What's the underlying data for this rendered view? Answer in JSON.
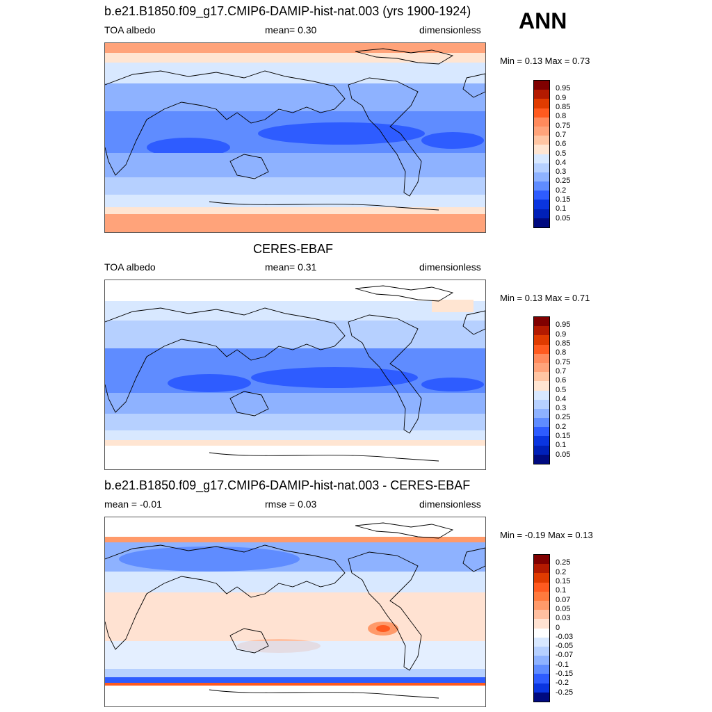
{
  "season": "ANN",
  "panels": [
    {
      "title": "b.e21.B1850.f09_g17.CMIP6-DAMIP-hist-nat.003 (yrs 1900-1924)",
      "left": "TOA albedo",
      "center": "mean=   0.30",
      "right": "dimensionless",
      "minmax": "Min =   0.13 Max =   0.73",
      "colorbar": {
        "labels": [
          "0.95",
          "0.9",
          "0.85",
          "0.8",
          "0.75",
          "0.7",
          "0.6",
          "0.5",
          "0.4",
          "0.3",
          "0.25",
          "0.2",
          "0.15",
          "0.1",
          "0.05"
        ],
        "colors": [
          "#800000",
          "#b31a00",
          "#e03b00",
          "#ff5a1f",
          "#ff8a5c",
          "#ffa37a",
          "#ffc5a3",
          "#ffe5d2",
          "#d8e8ff",
          "#b6d0ff",
          "#8eb2ff",
          "#5f8cff",
          "#2e5cff",
          "#0a35e0",
          "#0020b8",
          "#000a80"
        ]
      }
    },
    {
      "title": "CERES-EBAF",
      "left": "TOA albedo",
      "center": "mean=   0.31",
      "right": "dimensionless",
      "minmax": "Min =   0.13 Max =   0.71",
      "colorbar": {
        "labels": [
          "0.95",
          "0.9",
          "0.85",
          "0.8",
          "0.75",
          "0.7",
          "0.6",
          "0.5",
          "0.4",
          "0.3",
          "0.25",
          "0.2",
          "0.15",
          "0.1",
          "0.05"
        ],
        "colors": [
          "#800000",
          "#b31a00",
          "#e03b00",
          "#ff5a1f",
          "#ff8a5c",
          "#ffa37a",
          "#ffc5a3",
          "#ffe5d2",
          "#d8e8ff",
          "#b6d0ff",
          "#8eb2ff",
          "#5f8cff",
          "#2e5cff",
          "#0a35e0",
          "#0020b8",
          "#000a80"
        ]
      }
    },
    {
      "title": "b.e21.B1850.f09_g17.CMIP6-DAMIP-hist-nat.003 - CERES-EBAF",
      "left": "mean =  -0.01",
      "center": "rmse =   0.03",
      "right": "dimensionless",
      "minmax": "Min =  -0.19 Max =   0.13",
      "colorbar": {
        "labels": [
          "0.25",
          "0.2",
          "0.15",
          "0.1",
          "0.07",
          "0.05",
          "0.03",
          "0",
          "-0.03",
          "-0.05",
          "-0.07",
          "-0.1",
          "-0.15",
          "-0.2",
          "-0.25"
        ],
        "colors": [
          "#800000",
          "#b31a00",
          "#e03b00",
          "#ff5a1f",
          "#ff7a3d",
          "#ff9a6a",
          "#ffbfa0",
          "#ffe2d2",
          "#ffffff",
          "#d8e8ff",
          "#b6d0ff",
          "#8eb2ff",
          "#5f8cff",
          "#2e5cff",
          "#0a35e0",
          "#000a80"
        ]
      }
    }
  ]
}
